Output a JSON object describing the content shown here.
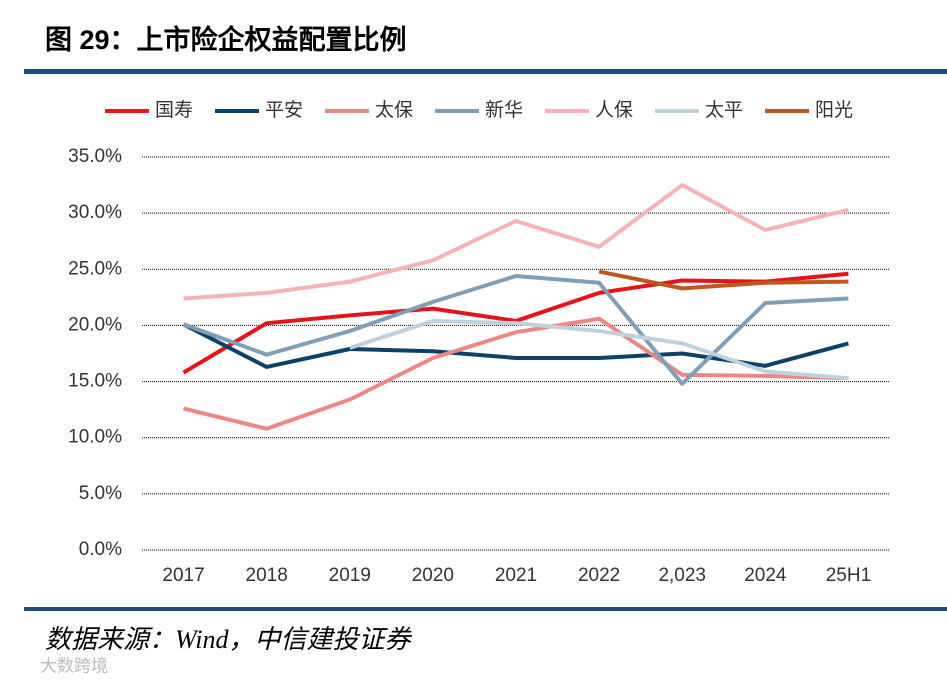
{
  "chart_data": {
    "type": "line",
    "title": "图 29：上市险企权益配置比例",
    "source": "数据来源：Wind，中信建投证券",
    "watermark": "大数跨境",
    "categories": [
      "2017",
      "2018",
      "2019",
      "2020",
      "2021",
      "2022",
      "2,023",
      "2024",
      "25H1"
    ],
    "series": [
      {
        "name": "国寿",
        "color": "#e5131b",
        "values": [
          15.8,
          20.2,
          20.9,
          21.5,
          20.4,
          22.9,
          24.0,
          23.9,
          24.6
        ]
      },
      {
        "name": "平安",
        "color": "#0d4168",
        "values": [
          20.1,
          16.3,
          17.9,
          17.7,
          17.1,
          17.1,
          17.5,
          16.4,
          18.4
        ]
      },
      {
        "name": "太保",
        "color": "#ee8686",
        "values": [
          12.6,
          10.8,
          13.4,
          17.1,
          19.4,
          20.6,
          15.6,
          15.5,
          15.3
        ]
      },
      {
        "name": "新华",
        "color": "#809eb6",
        "values": [
          20.1,
          17.4,
          19.5,
          22.1,
          24.4,
          23.8,
          14.8,
          22.0,
          22.4
        ]
      },
      {
        "name": "人保",
        "color": "#f5b3b7",
        "values": [
          22.4,
          22.9,
          23.9,
          25.8,
          29.3,
          27.0,
          32.5,
          28.5,
          30.3
        ]
      },
      {
        "name": "太平",
        "color": "#c0d1de",
        "values": [
          null,
          null,
          18.0,
          20.4,
          20.2,
          19.5,
          18.4,
          15.9,
          15.3
        ]
      },
      {
        "name": "阳光",
        "color": "#bf561c",
        "values": [
          null,
          null,
          null,
          null,
          null,
          24.8,
          23.3,
          23.8,
          23.9
        ]
      }
    ],
    "ylim": [
      0,
      35
    ],
    "yticks": [
      {
        "value": 0,
        "label": "0.0%"
      },
      {
        "value": 5,
        "label": "5.0%"
      },
      {
        "value": 10,
        "label": "10.0%"
      },
      {
        "value": 15,
        "label": "15.0%"
      },
      {
        "value": 20,
        "label": "20.0%"
      },
      {
        "value": 25,
        "label": "25.0%"
      },
      {
        "value": 30,
        "label": "30.0%"
      },
      {
        "value": 35,
        "label": "35.0%"
      }
    ],
    "grid": true
  }
}
